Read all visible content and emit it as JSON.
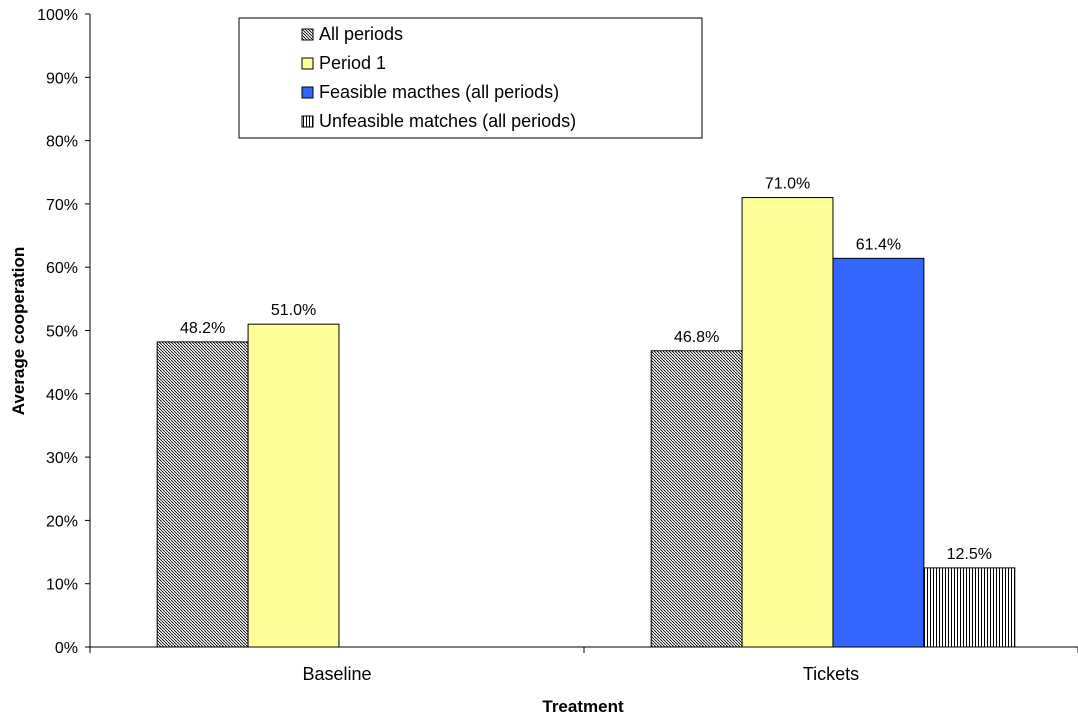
{
  "chart_data": {
    "type": "bar",
    "title": "",
    "xlabel": "Treatment",
    "ylabel": "Average cooperation",
    "ylim": [
      0,
      100
    ],
    "y_unit": "%",
    "y_ticks": [
      "0%",
      "10%",
      "20%",
      "30%",
      "40%",
      "50%",
      "60%",
      "70%",
      "80%",
      "90%",
      "100%"
    ],
    "categories": [
      "Baseline",
      "Tickets"
    ],
    "legend_position": "top-center",
    "grid": false,
    "series": [
      {
        "name": "All periods",
        "values": [
          48.2,
          46.8
        ],
        "labels": [
          "48.2%",
          "46.8%"
        ],
        "fill": "#d9d9d9",
        "pattern": "diagonal-hatch"
      },
      {
        "name": "Period 1",
        "values": [
          51.0,
          71.0
        ],
        "labels": [
          "51.0%",
          "71.0%"
        ],
        "fill": "#ffff99",
        "pattern": "solid"
      },
      {
        "name": "Feasible macthes (all periods)",
        "values": [
          null,
          61.4
        ],
        "labels": [
          null,
          "61.4%"
        ],
        "fill": "#3366ff",
        "pattern": "solid"
      },
      {
        "name": "Unfeasible matches (all periods)",
        "values": [
          null,
          12.5
        ],
        "labels": [
          null,
          "12.5%"
        ],
        "fill": "#ffffff",
        "pattern": "vertical-lines"
      }
    ]
  }
}
